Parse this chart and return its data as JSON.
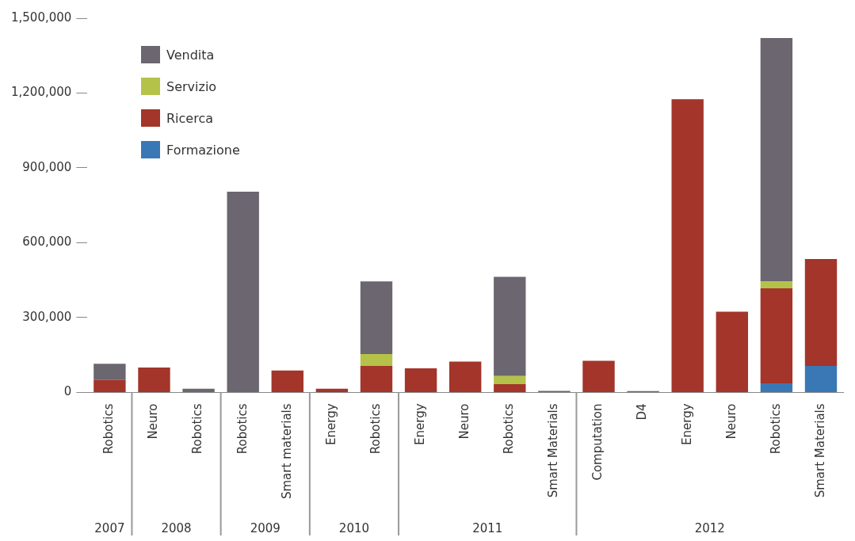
{
  "chart_data": {
    "type": "bar",
    "stacked": true,
    "categories": [
      "Robotics",
      "Neuro",
      "Robotics",
      "Robotics",
      "Smart materials",
      "Energy",
      "Robotics",
      "Energy",
      "Neuro",
      "Robotics",
      "Smart Materials",
      "Computation",
      "D4",
      "Energy",
      "Neuro",
      "Robotics",
      "Smart Materials"
    ],
    "series": [
      {
        "name": "Formazione",
        "color": "#3a78b5",
        "values": [
          null,
          null,
          null,
          null,
          null,
          null,
          null,
          null,
          null,
          null,
          null,
          null,
          null,
          null,
          null,
          36000,
          106000
        ]
      },
      {
        "name": "Ricerca",
        "color": "#a3352a",
        "values": [
          50000,
          100000,
          null,
          null,
          88000,
          15000,
          106000,
          97000,
          124000,
          33000,
          null,
          127000,
          null,
          1175000,
          324000,
          381000,
          429000
        ]
      },
      {
        "name": "Servizio",
        "color": "#b5c24a",
        "values": [
          null,
          null,
          null,
          null,
          null,
          null,
          48000,
          null,
          null,
          33000,
          null,
          null,
          null,
          null,
          null,
          27000,
          null
        ]
      },
      {
        "name": "Vendita",
        "color": "#6b6670",
        "values": [
          65000,
          null,
          15000,
          805000,
          null,
          null,
          291000,
          null,
          null,
          397000,
          6000,
          null,
          5000,
          null,
          null,
          977000,
          null
        ]
      }
    ],
    "ylim": [
      0,
      1500000
    ],
    "yticks": [
      0,
      {
        "value": 300000,
        "label": "300,000"
      },
      {
        "value": 600000,
        "label": "600,000"
      },
      {
        "value": 900000,
        "label": "900,000"
      },
      {
        "value": 1200000,
        "label": "1,200,000"
      },
      {
        "value": 1500000,
        "label": "1,500,000"
      }
    ],
    "grid": false,
    "legend": "top left",
    "annotations": [
      "2007",
      "2008",
      "2009",
      "2010",
      "2011",
      "2012"
    ]
  }
}
